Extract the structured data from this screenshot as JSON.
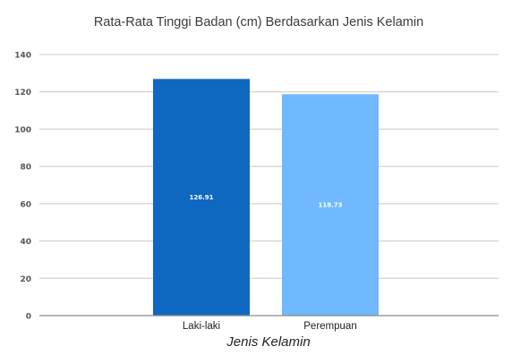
{
  "chart_data": {
    "type": "bar",
    "title": "Rata-Rata Tinggi Badan (cm) Berdasarkan Jenis Kelamin",
    "xlabel": "Jenis Kelamin",
    "ylabel": "",
    "categories": [
      "Laki-laki",
      "Perempuan"
    ],
    "values": [
      126.91,
      118.73
    ],
    "data_labels": [
      "126.91",
      "118.73"
    ],
    "colors": [
      "#0f68bf",
      "#70b8ff"
    ],
    "ylim": [
      0,
      140
    ],
    "yticks": [
      0,
      20,
      40,
      60,
      80,
      100,
      120,
      140
    ],
    "grid": true,
    "legend": "none"
  }
}
